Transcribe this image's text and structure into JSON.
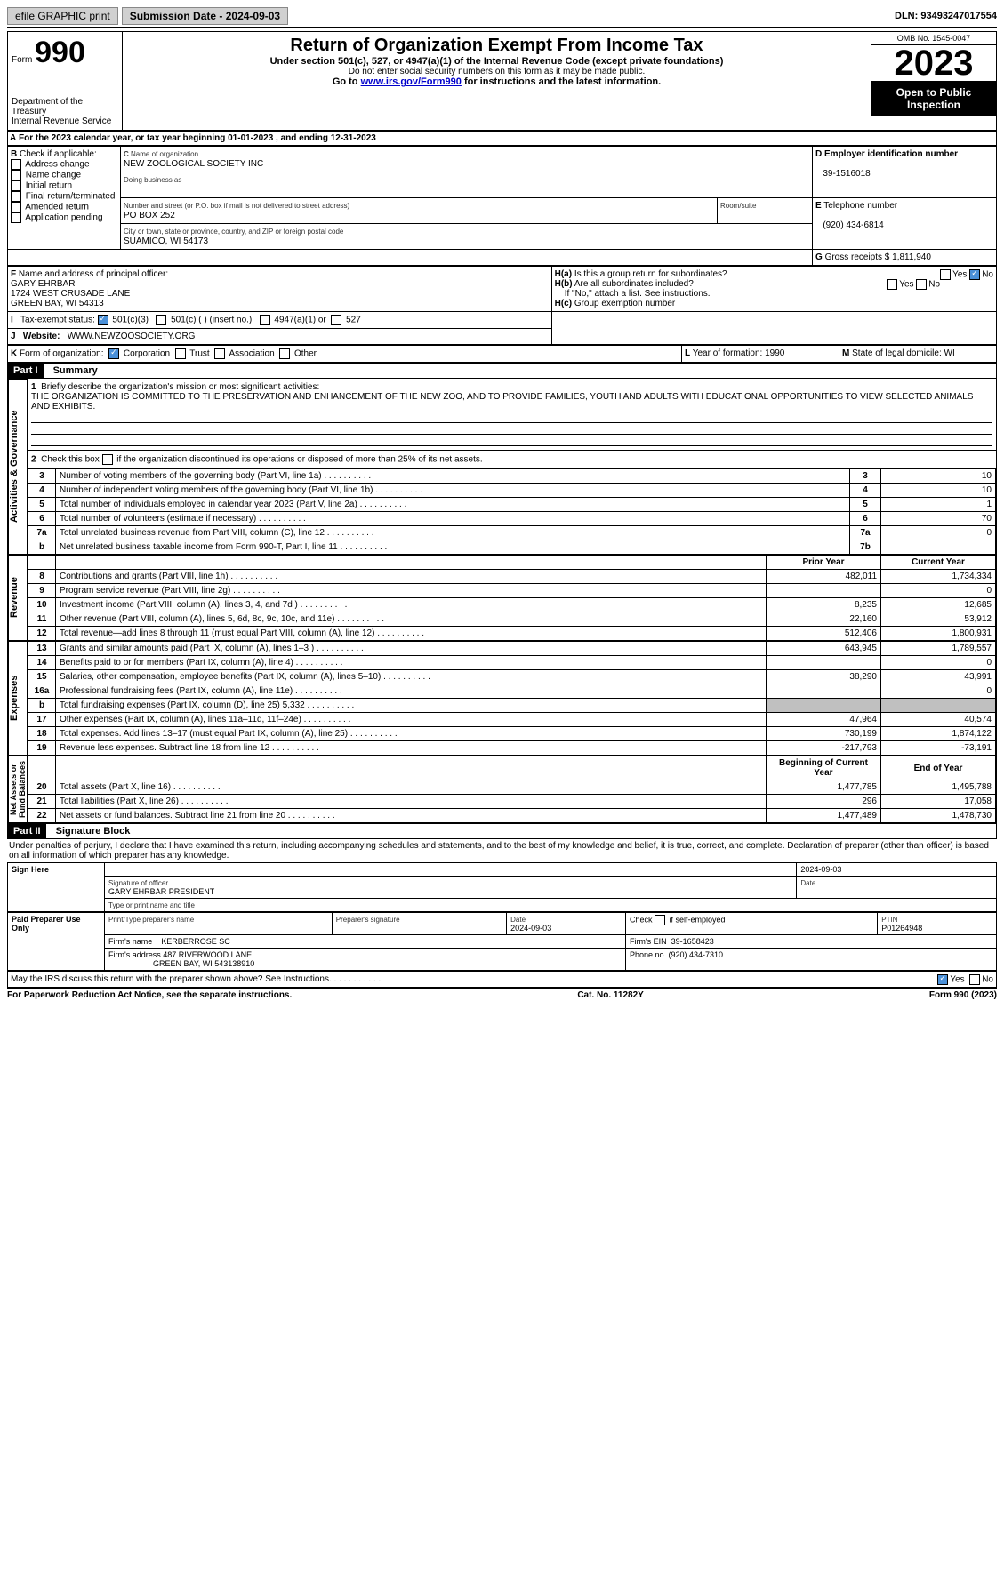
{
  "topbar": {
    "efile": "efile GRAPHIC print",
    "sub_label": "Submission Date - 2024-09-03",
    "dln": "DLN: 93493247017554"
  },
  "header": {
    "form_label": "Form",
    "form_num": "990",
    "title": "Return of Organization Exempt From Income Tax",
    "subtitle": "Under section 501(c), 527, or 4947(a)(1) of the Internal Revenue Code (except private foundations)",
    "note1": "Do not enter social security numbers on this form as it may be made public.",
    "note2_pre": "Go to ",
    "note2_link": "www.irs.gov/Form990",
    "note2_post": " for instructions and the latest information.",
    "dept": "Department of the Treasury\nInternal Revenue Service",
    "omb": "OMB No. 1545-0047",
    "year": "2023",
    "inspection": "Open to Public Inspection"
  },
  "A": {
    "text_pre": "For the 2023 calendar year, or tax year beginning ",
    "begin": "01-01-2023",
    "mid": " , and ending ",
    "end": "12-31-2023"
  },
  "B": {
    "label": "Check if applicable:",
    "opts": [
      "Address change",
      "Name change",
      "Initial return",
      "Final return/terminated",
      "Amended return",
      "Application pending"
    ]
  },
  "C": {
    "name_label": "Name of organization",
    "name": "NEW ZOOLOGICAL SOCIETY INC",
    "dba_label": "Doing business as",
    "street_label": "Number and street (or P.O. box if mail is not delivered to street address)",
    "street": "PO BOX 252",
    "room_label": "Room/suite",
    "city_label": "City or town, state or province, country, and ZIP or foreign postal code",
    "city": "SUAMICO, WI  54173"
  },
  "D": {
    "label": "Employer identification number",
    "value": "39-1516018"
  },
  "E": {
    "label": "Telephone number",
    "value": "(920) 434-6814"
  },
  "G": {
    "label": "Gross receipts $",
    "value": "1,811,940"
  },
  "F": {
    "label": "Name and address of principal officer:",
    "l1": "GARY EHRBAR",
    "l2": "1724 WEST CRUSADE LANE",
    "l3": "GREEN BAY, WI  54313"
  },
  "H": {
    "a": "Is this a group return for subordinates?",
    "b": "Are all subordinates included?",
    "b_note": "If \"No,\" attach a list. See instructions.",
    "c": "Group exemption number"
  },
  "I": {
    "label": "Tax-exempt status:",
    "o1": "501(c)(3)",
    "o2": "501(c) (  ) (insert no.)",
    "o3": "4947(a)(1) or",
    "o4": "527"
  },
  "J": {
    "label": "Website:",
    "value": "WWW.NEWZOOSOCIETY.ORG"
  },
  "K": {
    "label": "Form of organization:",
    "opts": [
      "Corporation",
      "Trust",
      "Association",
      "Other"
    ]
  },
  "L": {
    "label": "Year of formation:",
    "value": "1990"
  },
  "M": {
    "label": "State of legal domicile:",
    "value": "WI"
  },
  "part1": {
    "header": "Part I",
    "title": "Summary",
    "q1": "Briefly describe the organization's mission or most significant activities:",
    "mission": "THE ORGANIZATION IS COMMITTED TO THE PRESERVATION AND ENHANCEMENT OF THE NEW ZOO, AND TO PROVIDE FAMILIES, YOUTH AND ADULTS WITH EDUCATIONAL OPPORTUNITIES TO VIEW SELECTED ANIMALS AND EXHIBITS.",
    "q2": "Check this box       if the organization discontinued its operations or disposed of more than 25% of its net assets.",
    "lines_ag": [
      {
        "n": "3",
        "d": "Number of voting members of the governing body (Part VI, line 1a)",
        "rn": "3",
        "v": "10"
      },
      {
        "n": "4",
        "d": "Number of independent voting members of the governing body (Part VI, line 1b)",
        "rn": "4",
        "v": "10"
      },
      {
        "n": "5",
        "d": "Total number of individuals employed in calendar year 2023 (Part V, line 2a)",
        "rn": "5",
        "v": "1"
      },
      {
        "n": "6",
        "d": "Total number of volunteers (estimate if necessary)",
        "rn": "6",
        "v": "70"
      },
      {
        "n": "7a",
        "d": "Total unrelated business revenue from Part VIII, column (C), line 12",
        "rn": "7a",
        "v": "0"
      },
      {
        "n": "b",
        "d": "Net unrelated business taxable income from Form 990-T, Part I, line 11",
        "rn": "7b",
        "v": ""
      }
    ],
    "prior": "Prior Year",
    "current": "Current Year",
    "revenue": [
      {
        "n": "8",
        "d": "Contributions and grants (Part VIII, line 1h)",
        "p": "482,011",
        "c": "1,734,334"
      },
      {
        "n": "9",
        "d": "Program service revenue (Part VIII, line 2g)",
        "p": "",
        "c": "0"
      },
      {
        "n": "10",
        "d": "Investment income (Part VIII, column (A), lines 3, 4, and 7d )",
        "p": "8,235",
        "c": "12,685"
      },
      {
        "n": "11",
        "d": "Other revenue (Part VIII, column (A), lines 5, 6d, 8c, 9c, 10c, and 11e)",
        "p": "22,160",
        "c": "53,912"
      },
      {
        "n": "12",
        "d": "Total revenue—add lines 8 through 11 (must equal Part VIII, column (A), line 12)",
        "p": "512,406",
        "c": "1,800,931"
      }
    ],
    "expenses": [
      {
        "n": "13",
        "d": "Grants and similar amounts paid (Part IX, column (A), lines 1–3 )",
        "p": "643,945",
        "c": "1,789,557"
      },
      {
        "n": "14",
        "d": "Benefits paid to or for members (Part IX, column (A), line 4)",
        "p": "",
        "c": "0"
      },
      {
        "n": "15",
        "d": "Salaries, other compensation, employee benefits (Part IX, column (A), lines 5–10)",
        "p": "38,290",
        "c": "43,991"
      },
      {
        "n": "16a",
        "d": "Professional fundraising fees (Part IX, column (A), line 11e)",
        "p": "",
        "c": "0"
      },
      {
        "n": "b",
        "d": "Total fundraising expenses (Part IX, column (D), line 25) 5,332",
        "p": "shade",
        "c": "shade"
      },
      {
        "n": "17",
        "d": "Other expenses (Part IX, column (A), lines 11a–11d, 11f–24e)",
        "p": "47,964",
        "c": "40,574"
      },
      {
        "n": "18",
        "d": "Total expenses. Add lines 13–17 (must equal Part IX, column (A), line 25)",
        "p": "730,199",
        "c": "1,874,122"
      },
      {
        "n": "19",
        "d": "Revenue less expenses. Subtract line 18 from line 12",
        "p": "-217,793",
        "c": "-73,191"
      }
    ],
    "begin": "Beginning of Current Year",
    "end": "End of Year",
    "net": [
      {
        "n": "20",
        "d": "Total assets (Part X, line 16)",
        "p": "1,477,785",
        "c": "1,495,788"
      },
      {
        "n": "21",
        "d": "Total liabilities (Part X, line 26)",
        "p": "296",
        "c": "17,058"
      },
      {
        "n": "22",
        "d": "Net assets or fund balances. Subtract line 21 from line 20",
        "p": "1,477,489",
        "c": "1,478,730"
      }
    ]
  },
  "part2": {
    "header": "Part II",
    "title": "Signature Block",
    "decl": "Under penalties of perjury, I declare that I have examined this return, including accompanying schedules and statements, and to the best of my knowledge and belief, it is true, correct, and complete. Declaration of preparer (other than officer) is based on all information of which preparer has any knowledge.",
    "sign_here": "Sign Here",
    "sig_officer": "Signature of officer",
    "officer_name": "GARY EHRBAR  PRESIDENT",
    "type_name": "Type or print name and title",
    "date": "Date",
    "date_val": "2024-09-03",
    "paid": "Paid Preparer Use Only",
    "prep_name_label": "Print/Type preparer's name",
    "prep_sig_label": "Preparer's signature",
    "prep_date": "2024-09-03",
    "check_self": "Check       if self-employed",
    "ptin_label": "PTIN",
    "ptin": "P01264948",
    "firm_name_label": "Firm's name",
    "firm_name": "KERBERROSE SC",
    "firm_ein_label": "Firm's EIN",
    "firm_ein": "39-1658423",
    "firm_addr_label": "Firm's address",
    "firm_addr1": "487 RIVERWOOD LANE",
    "firm_addr2": "GREEN BAY, WI  543138910",
    "phone_label": "Phone no.",
    "phone": "(920) 434-7310",
    "discuss": "May the IRS discuss this return with the preparer shown above? See Instructions."
  },
  "footer": {
    "left": "For Paperwork Reduction Act Notice, see the separate instructions.",
    "mid": "Cat. No. 11282Y",
    "right": "Form 990 (2023)"
  },
  "labels": {
    "yes": "Yes",
    "no": "No"
  }
}
